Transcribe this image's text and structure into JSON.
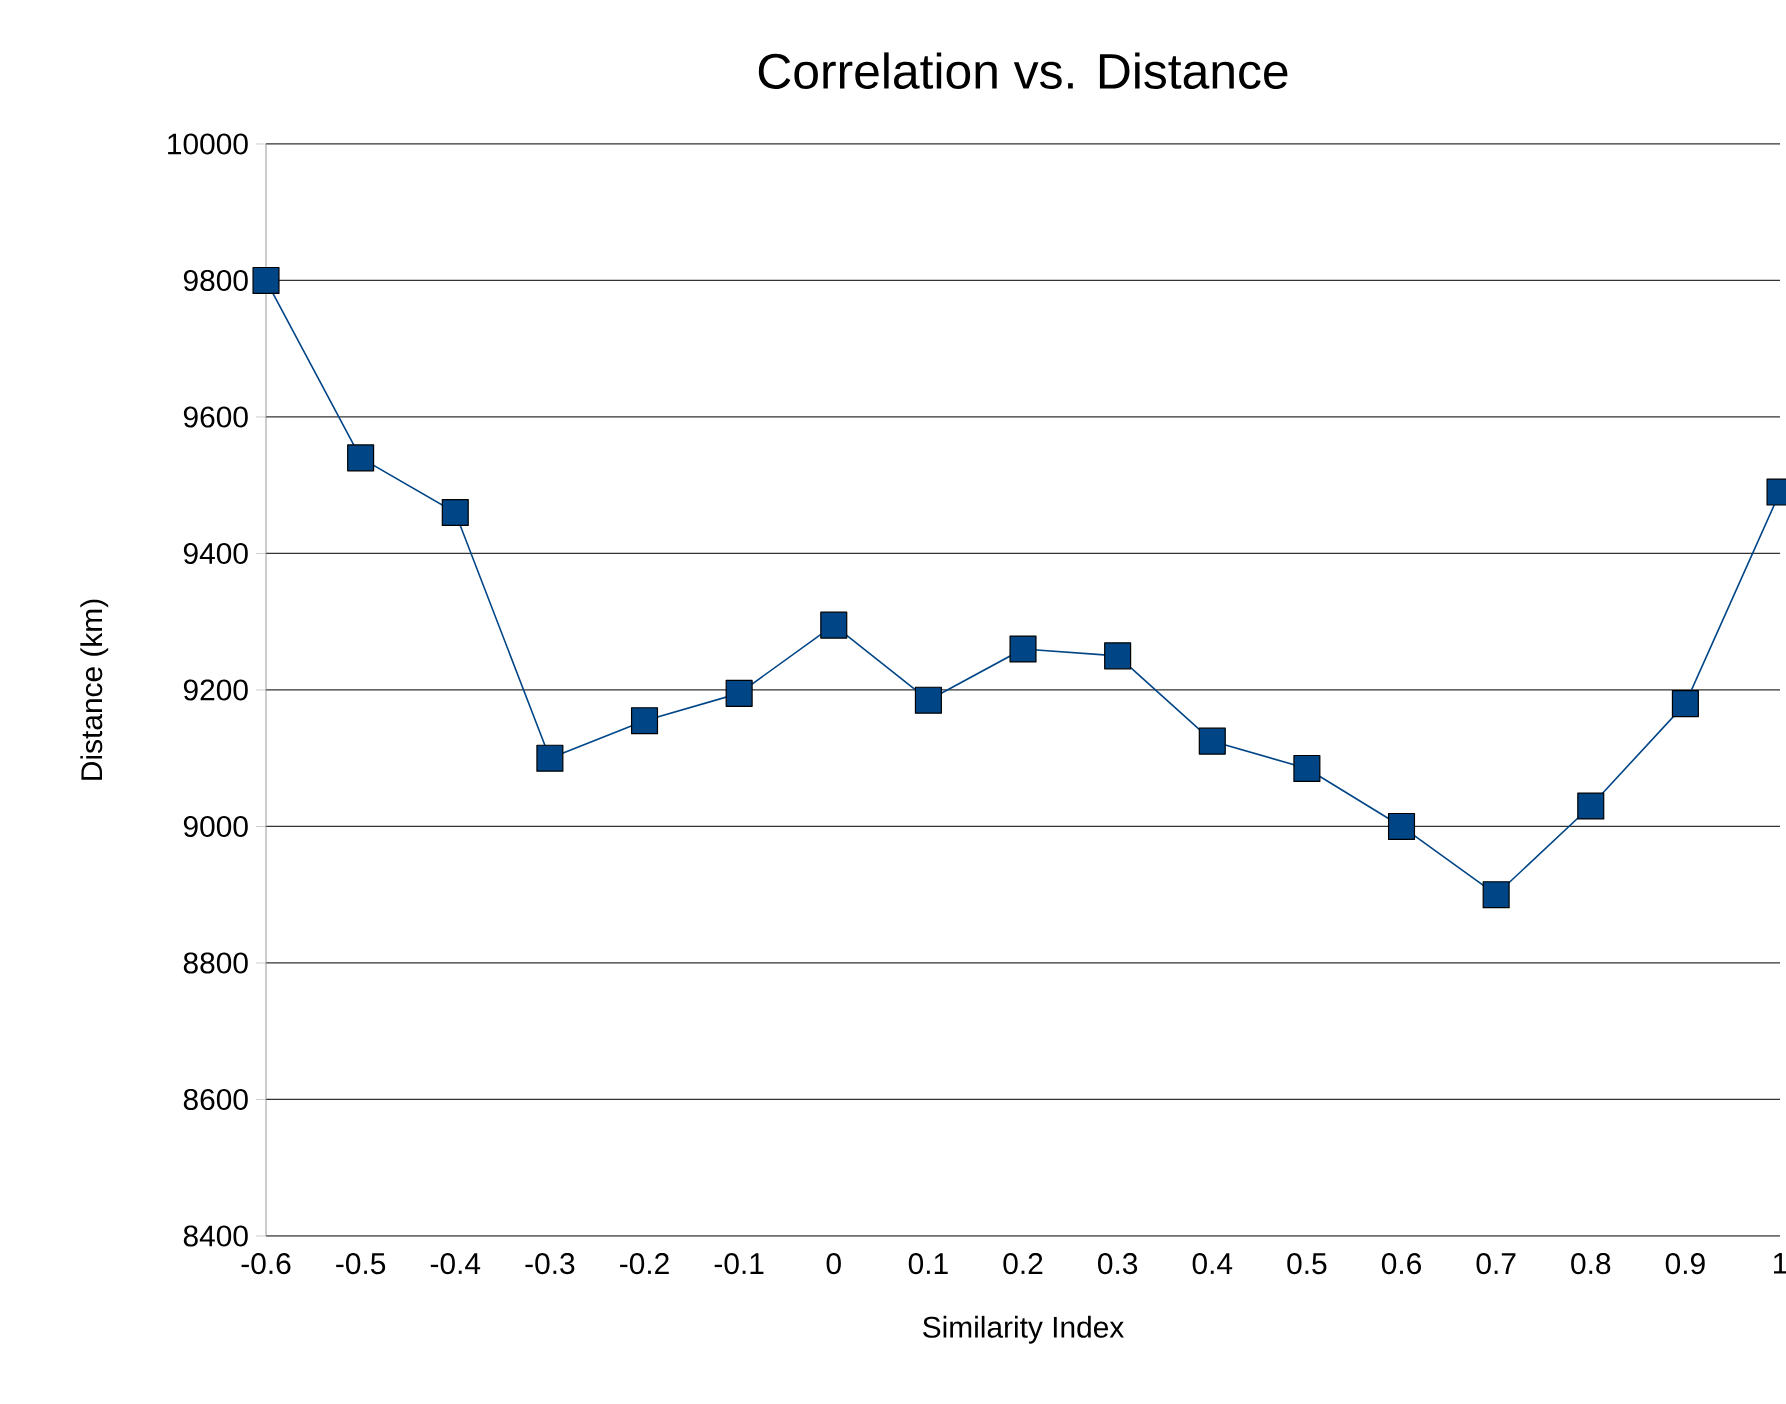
{
  "chart_data": {
    "type": "line",
    "title": "Correlation vs. Distance",
    "xlabel": "Similarity Index",
    "ylabel": "Distance (km)",
    "x": [
      -0.6,
      -0.5,
      -0.4,
      -0.3,
      -0.2,
      -0.1,
      0,
      0.1,
      0.2,
      0.3,
      0.4,
      0.5,
      0.6,
      0.7,
      0.8,
      0.9,
      1
    ],
    "series": [
      {
        "color": "#004586",
        "values": [
          9800,
          9540,
          9460,
          9100,
          9155,
          9195,
          9295,
          9185,
          9260,
          9250,
          9125,
          9085,
          9000,
          8900,
          9030,
          9180,
          9490
        ]
      }
    ],
    "xlim": [
      -0.6,
      1
    ],
    "xticks": [
      -0.6,
      -0.5,
      -0.4,
      -0.3,
      -0.2,
      -0.1,
      0,
      0.1,
      0.2,
      0.3,
      0.4,
      0.5,
      0.6,
      0.7,
      0.8,
      0.9,
      1
    ],
    "ylim": [
      8400,
      10000
    ],
    "yticks": [
      8400,
      8600,
      8800,
      9000,
      9200,
      9400,
      9600,
      9800,
      10000
    ],
    "grid": "y",
    "marker": "square",
    "line_style": "solid"
  }
}
